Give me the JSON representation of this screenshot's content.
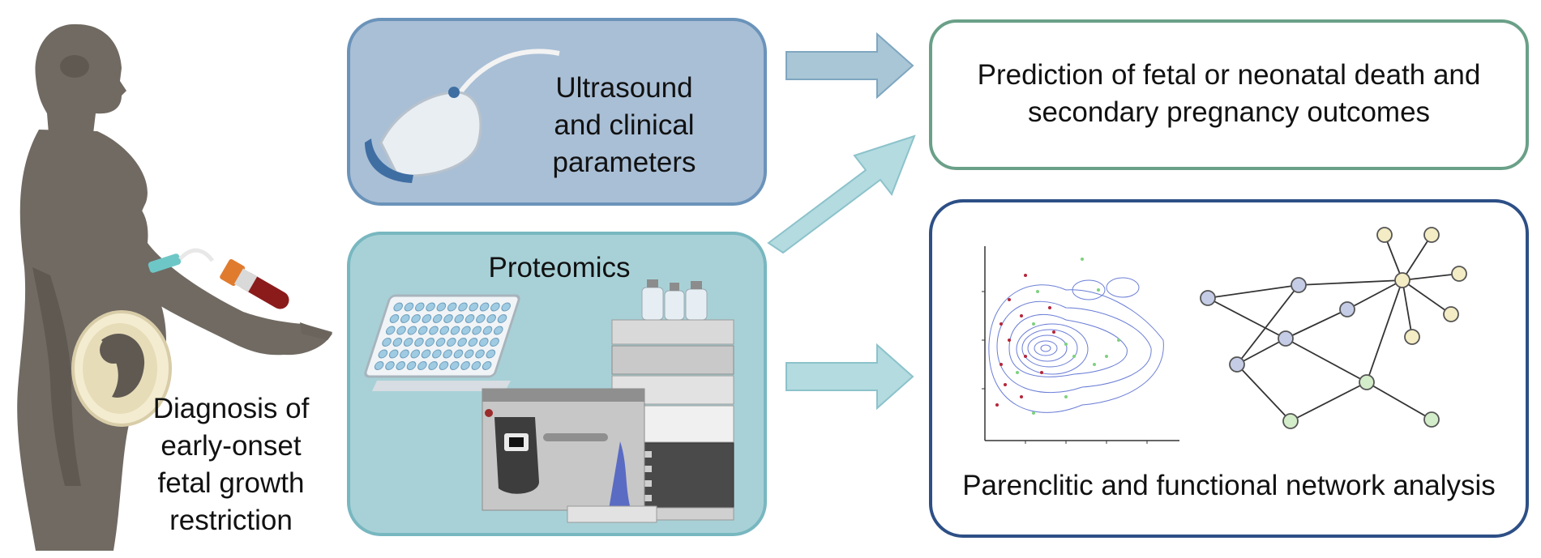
{
  "figure": {
    "left_caption": [
      "Diagnosis of",
      "early-onset",
      "fetal growth",
      "restriction"
    ],
    "ultrasound_label": [
      "Ultrasound",
      "and clinical",
      "parameters"
    ],
    "proteomics_label": "Proteomics",
    "prediction_label": [
      "Prediction of fetal or neonatal death and",
      "secondary pregnancy outcomes"
    ],
    "network_label": "Parenclitic and functional network analysis"
  },
  "colors": {
    "ultrasound_fill": "#a9bfd6",
    "ultrasound_border": "#6b93ba",
    "proteomics_fill": "#a8d1d7",
    "proteomics_border": "#78b7c0",
    "prediction_border": "#6aa088",
    "network_border": "#2d4f86",
    "arrow_fill": "#a9c6d6",
    "arrow_stroke": "#7fa6c0",
    "silhouette": "#706a62",
    "node_blue": "#c5cce6",
    "node_yellow": "#f3ecc4",
    "node_green": "#d3ecc9"
  },
  "icons": [
    "pregnant-woman-illustration",
    "ultrasound-probe-icon",
    "well-plate-icon",
    "lc-ms-instrument-icon",
    "contour-plot-icon",
    "network-graph-icon"
  ]
}
